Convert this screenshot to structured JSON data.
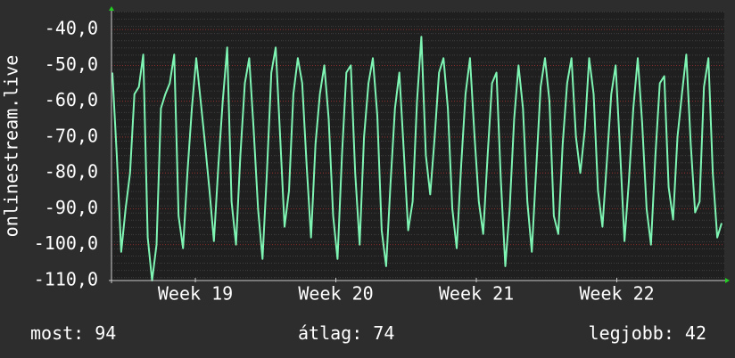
{
  "chart_data": {
    "type": "line",
    "ylabel": "onlinestream.live",
    "xlim": [
      18.403,
      22.765
    ],
    "xticks": [
      {
        "value": 19,
        "label": "Week 19"
      },
      {
        "value": 20,
        "label": "Week 20"
      },
      {
        "value": 21,
        "label": "Week 21"
      },
      {
        "value": 22,
        "label": "Week 22"
      }
    ],
    "ylim": [
      -110,
      -35
    ],
    "yticks": [
      {
        "value": -110,
        "label": "-110,0"
      },
      {
        "value": -100,
        "label": "-100,0"
      },
      {
        "value": -90,
        "label": "-90,0"
      },
      {
        "value": -80,
        "label": "-80,0"
      },
      {
        "value": -70,
        "label": "-70,0"
      },
      {
        "value": -60,
        "label": "-60,0"
      },
      {
        "value": -50,
        "label": "-50,0"
      },
      {
        "value": -40,
        "label": "-40,0"
      }
    ],
    "grid": true,
    "color": "#7ff5b4",
    "values": [
      -52,
      -75,
      -102,
      -90,
      -80,
      -58,
      -56,
      -47,
      -98,
      -110,
      -100,
      -62,
      -58,
      -55,
      -47,
      -92,
      -101,
      -80,
      -62,
      -48,
      -60,
      -72,
      -85,
      -99,
      -78,
      -60,
      -45,
      -88,
      -100,
      -75,
      -55,
      -48,
      -68,
      -90,
      -104,
      -80,
      -52,
      -45,
      -70,
      -95,
      -85,
      -58,
      -48,
      -55,
      -78,
      -98,
      -72,
      -58,
      -50,
      -65,
      -92,
      -104,
      -75,
      -52,
      -50,
      -80,
      -100,
      -70,
      -55,
      -48,
      -64,
      -96,
      -106,
      -83,
      -62,
      -52,
      -74,
      -96,
      -88,
      -60,
      -42,
      -75,
      -86,
      -70,
      -52,
      -48,
      -62,
      -90,
      -101,
      -78,
      -58,
      -48,
      -69,
      -88,
      -97,
      -75,
      -55,
      -52,
      -82,
      -106,
      -90,
      -65,
      -50,
      -62,
      -88,
      -102,
      -79,
      -56,
      -48,
      -60,
      -92,
      -97,
      -72,
      -55,
      -48,
      -70,
      -80,
      -68,
      -48,
      -58,
      -85,
      -95,
      -77,
      -58,
      -50,
      -74,
      -99,
      -82,
      -62,
      -48,
      -66,
      -90,
      -100,
      -75,
      -55,
      -53,
      -84,
      -93,
      -70,
      -58,
      -47,
      -72,
      -91,
      -88,
      -56,
      -48,
      -80,
      -98,
      -94
    ],
    "stats": [
      {
        "label": "most:",
        "value": 94
      },
      {
        "label": "átlag:",
        "value": 74
      },
      {
        "label": "legjobb:",
        "value": 42
      }
    ]
  }
}
